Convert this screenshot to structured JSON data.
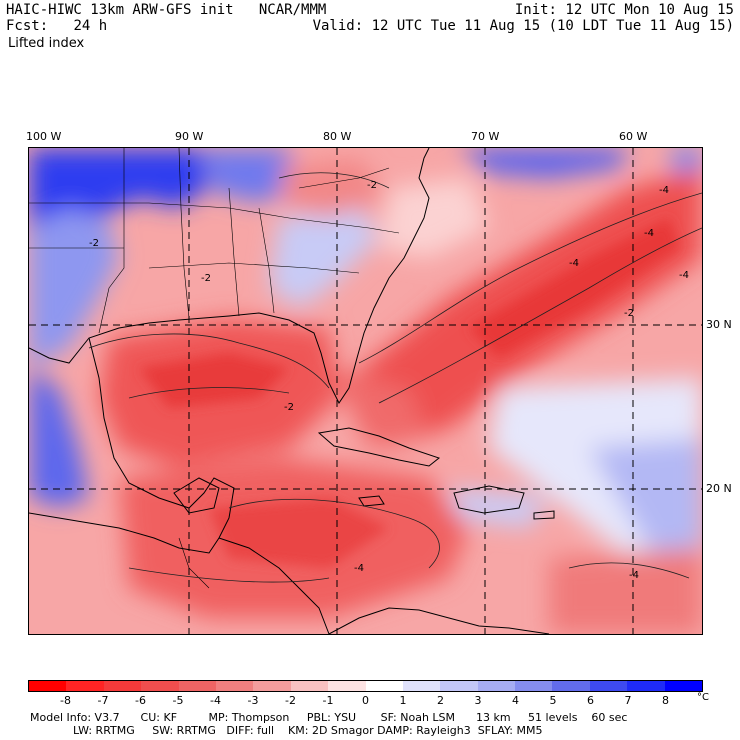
{
  "header": {
    "model_title": "HAIC-HIWC 13km ARW-GFS init",
    "org": "NCAR/MMM",
    "forecast_label": "Fcst:",
    "forecast_hours": "24 h",
    "init_line": "Init: 12 UTC Mon 10 Aug 15",
    "valid_line": "Valid: 12 UTC Tue 11 Aug 15 (10 LDT Tue 11 Aug 15)",
    "field_name": "Lifted index"
  },
  "map": {
    "longitude_labels": [
      "100 W",
      "90 W",
      "80 W",
      "70 W",
      "60 W"
    ],
    "latitude_labels": [
      "30 N",
      "20 N"
    ],
    "contour_labels": [
      "-2",
      "-2",
      "-2",
      "-2",
      "-4",
      "-4",
      "-4",
      "-4",
      "-2",
      "-4",
      "-4"
    ],
    "colors": {
      "strong_unstable": "#ff0000",
      "unstable": "#f25a5a",
      "weak_unstable": "#f7a6a6",
      "neutral": "#ffffff",
      "stable": "#9aa3f0",
      "strong_stable": "#0000ff"
    }
  },
  "colorbar": {
    "ticks": [
      "-8",
      "-7",
      "-6",
      "-5",
      "-4",
      "-3",
      "-2",
      "-1",
      "0",
      "1",
      "2",
      "3",
      "4",
      "5",
      "6",
      "7",
      "8"
    ],
    "unit": "°C",
    "swatches": [
      "#ff0000",
      "#ff2424",
      "#f53a3a",
      "#f04e4e",
      "#ee6464",
      "#f07f7f",
      "#f49d9d",
      "#f9c1c1",
      "#fde3e3",
      "#ffffff",
      "#dfe1fb",
      "#c3c7f7",
      "#a6acf3",
      "#858def",
      "#626cec",
      "#3e4af0",
      "#1f2bf7",
      "#0000ff"
    ]
  },
  "footer": {
    "line1": "Model Info: V3.7      CU: KF         MP: Thompson     PBL: YSU       SF: Noah LSM      13 km     51 levels    60 sec",
    "line2": "LW: RRTMG     SW: RRTMG   DIFF: full    KM: 2D Smagor DAMP: Rayleigh3  SFLAY: MM5"
  }
}
